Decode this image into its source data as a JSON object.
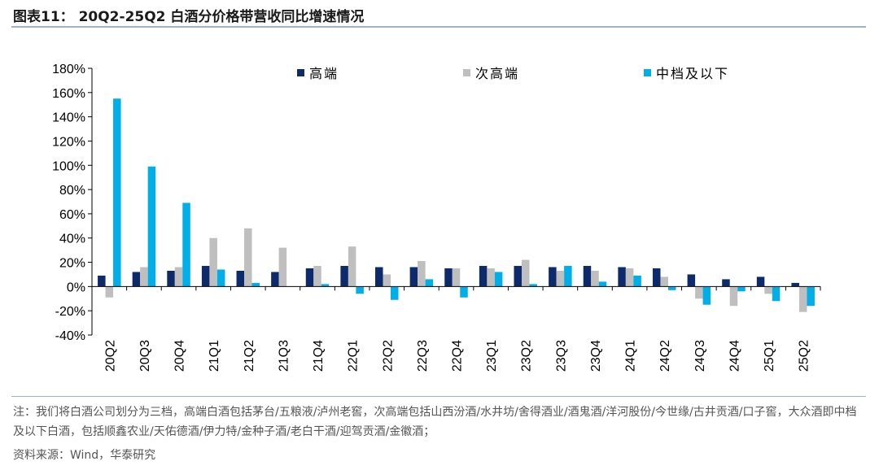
{
  "header": {
    "title": "图表11：  20Q2-25Q2 白酒分价格带营收同比增速情况"
  },
  "footer": {
    "note": "注：我们将白酒公司划分为三档，高端白酒包括茅台/五粮液/泸州老窖，次高端包括山西汾酒/水井坊/舍得酒业/酒鬼酒/洋河股份/今世缘/古井贡酒/口子窖，大众酒即中档及以下白酒，包括顺鑫农业/天佑德酒/伊力特/金种子酒/老白干酒/迎驾贡酒/金徽酒；",
    "source": "资料来源：Wind，华泰研究"
  },
  "chart_data": {
    "type": "bar",
    "categories": [
      "20Q2",
      "20Q3",
      "20Q4",
      "21Q1",
      "21Q2",
      "21Q3",
      "21Q4",
      "22Q1",
      "22Q2",
      "22Q3",
      "22Q4",
      "23Q1",
      "23Q2",
      "23Q3",
      "23Q4",
      "24Q1",
      "24Q2",
      "24Q3",
      "24Q4",
      "25Q1",
      "25Q2"
    ],
    "series": [
      {
        "name": "高端",
        "color": "#0d2b6b",
        "values": [
          9,
          12,
          13,
          17,
          13,
          12,
          15,
          17,
          16,
          16,
          15,
          17,
          17,
          16,
          17,
          16,
          15,
          10,
          6,
          8,
          3
        ]
      },
      {
        "name": "次高端",
        "color": "#bfbfbf",
        "values": [
          -9,
          16,
          16,
          40,
          48,
          32,
          17,
          33,
          10,
          21,
          15,
          15,
          22,
          13,
          13,
          15,
          8,
          -10,
          -16,
          -6,
          -21
        ]
      },
      {
        "name": "中档及以下",
        "color": "#00aee8",
        "values": [
          155,
          99,
          69,
          14,
          3,
          0,
          2,
          -6,
          -11,
          6,
          -9,
          12,
          2,
          17,
          4,
          9,
          -3,
          -15,
          -4,
          -12,
          -16
        ]
      }
    ],
    "ylim": [
      -40,
      180
    ],
    "yticks": [
      -40,
      -20,
      0,
      20,
      40,
      60,
      80,
      100,
      120,
      140,
      160,
      180
    ],
    "ytick_labels": [
      "-40%",
      "-20%",
      "0%",
      "20%",
      "40%",
      "60%",
      "80%",
      "100%",
      "120%",
      "140%",
      "160%",
      "180%"
    ],
    "legend_position": "top",
    "grid": false
  }
}
